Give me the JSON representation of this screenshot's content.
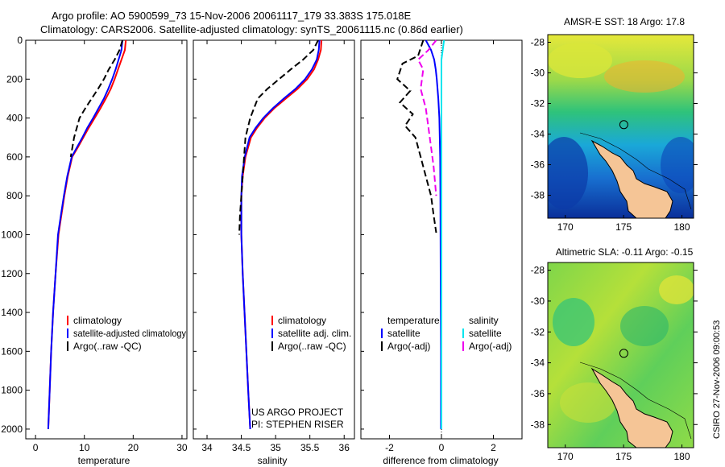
{
  "header": {
    "line1": "Argo profile: AO 5900599_73 15-Nov-2006 20061117_179 33.383S 175.018E",
    "line2": "Climatology: CARS2006. Satellite-adjusted climatology: synTS_20061115.nc (0.86d earlier)"
  },
  "side_note": "CSIRO 27-Nov-2006 09:00:53",
  "project_note": {
    "line1": "US ARGO PROJECT",
    "line2": "PI: STEPHEN RISER"
  },
  "colors": {
    "climatology": "#ff0000",
    "satellite": "#0000ff",
    "argo": "#000000",
    "sat_sal": "#00e5ee",
    "argo_sal": "#ee00ee",
    "land": "#f5c596"
  },
  "chart_data": [
    {
      "id": "temperature",
      "type": "line",
      "xlabel": "temperature",
      "ylabel": "",
      "xlim": [
        -2,
        31
      ],
      "ylim": [
        2050,
        0
      ],
      "xticks": [
        0,
        10,
        20,
        30
      ],
      "yticks": [
        0,
        200,
        400,
        600,
        800,
        1000,
        1200,
        1400,
        1600,
        1800,
        2000
      ],
      "legend": [
        "climatology",
        "satellite-adjusted climatology",
        "Argo(..raw -QC)"
      ],
      "series": [
        {
          "name": "climatology",
          "color": "#ff0000",
          "dash": "",
          "x": [
            18.5,
            18.3,
            17.6,
            16.9,
            16.2,
            15.4,
            14.4,
            13.3,
            12.1,
            10.9,
            9.8,
            8.7,
            7.5,
            6.6,
            5.9,
            5.3,
            4.7,
            4.1,
            3.6,
            3.2,
            2.9,
            2.6
          ],
          "y": [
            0,
            50,
            100,
            150,
            200,
            250,
            300,
            350,
            400,
            450,
            500,
            550,
            600,
            700,
            800,
            900,
            1000,
            1200,
            1400,
            1600,
            1800,
            2000
          ]
        },
        {
          "name": "satellite-adjusted climatology",
          "color": "#0000ff",
          "dash": "",
          "x": [
            17.8,
            17.6,
            17.0,
            16.4,
            15.7,
            14.9,
            14.0,
            12.9,
            11.8,
            10.6,
            9.6,
            8.5,
            7.4,
            6.5,
            5.8,
            5.2,
            4.6,
            4.1,
            3.6,
            3.2,
            2.9,
            2.6
          ],
          "y": [
            0,
            50,
            100,
            150,
            200,
            250,
            300,
            350,
            400,
            450,
            500,
            550,
            600,
            700,
            800,
            900,
            1000,
            1200,
            1400,
            1600,
            1800,
            2000
          ]
        },
        {
          "name": "Argo(..raw -QC)",
          "color": "#000000",
          "dash": "8,4",
          "x": [
            17.8,
            17.2,
            16.2,
            15.0,
            14.0,
            12.8,
            11.5,
            10.2,
            9.0,
            7.9,
            7.2
          ],
          "y": [
            0,
            50,
            100,
            150,
            200,
            250,
            300,
            350,
            400,
            500,
            600
          ]
        }
      ]
    },
    {
      "id": "salinity",
      "type": "line",
      "xlabel": "salinity",
      "ylabel": "",
      "xlim": [
        33.8,
        36.15
      ],
      "ylim": [
        2050,
        0
      ],
      "xticks": [
        34,
        34.5,
        35,
        35.5,
        36
      ],
      "yticks": [],
      "legend": [
        "climatology",
        "satellite adj. clim.",
        "Argo(..raw -QC)"
      ],
      "series": [
        {
          "name": "climatology",
          "color": "#ff0000",
          "dash": "",
          "x": [
            35.67,
            35.66,
            35.62,
            35.56,
            35.46,
            35.32,
            35.15,
            34.98,
            34.84,
            34.73,
            34.64,
            34.56,
            34.52,
            34.5,
            34.5,
            34.52,
            34.56,
            34.6,
            34.63
          ],
          "y": [
            0,
            50,
            100,
            150,
            200,
            250,
            300,
            350,
            400,
            450,
            500,
            600,
            700,
            800,
            1000,
            1200,
            1500,
            1800,
            2000
          ]
        },
        {
          "name": "satellite adj. clim.",
          "color": "#0000ff",
          "dash": "",
          "x": [
            35.64,
            35.63,
            35.6,
            35.53,
            35.43,
            35.29,
            35.12,
            34.96,
            34.82,
            34.71,
            34.62,
            34.55,
            34.51,
            34.5,
            34.5,
            34.52,
            34.56,
            34.6,
            34.63
          ],
          "y": [
            0,
            50,
            100,
            150,
            200,
            250,
            300,
            350,
            400,
            450,
            500,
            600,
            700,
            800,
            1000,
            1200,
            1500,
            1800,
            2000
          ]
        },
        {
          "name": "Argo(..raw -QC)",
          "color": "#000000",
          "dash": "8,4",
          "x": [
            35.62,
            35.55,
            35.4,
            35.22,
            35.05,
            34.88,
            34.74,
            34.63,
            34.56,
            34.52,
            34.48,
            34.47
          ],
          "y": [
            0,
            50,
            100,
            150,
            200,
            250,
            300,
            400,
            500,
            700,
            900,
            1000
          ]
        }
      ]
    },
    {
      "id": "difference",
      "type": "line",
      "xlabel": "difference from climatology",
      "ylabel": "",
      "xlim": [
        -3.1,
        3.1
      ],
      "ylim": [
        2050,
        0
      ],
      "xticks": [
        -2,
        0,
        2
      ],
      "yticks": [],
      "legend_groups": [
        {
          "heading": "temperature",
          "items": [
            "satellite",
            "Argo(-adj)"
          ]
        },
        {
          "heading": "salinity",
          "items": [
            "satellite",
            "Argo(-adj)"
          ]
        }
      ],
      "series": [
        {
          "name": "temperature satellite",
          "color": "#0000ff",
          "dash": "",
          "x": [
            -0.6,
            -0.4,
            -0.28,
            -0.22,
            -0.18,
            -0.12,
            -0.08,
            -0.05,
            -0.04,
            -0.03,
            -0.02,
            -0.02
          ],
          "y": [
            0,
            50,
            100,
            150,
            200,
            300,
            400,
            600,
            800,
            1200,
            1600,
            2000
          ]
        },
        {
          "name": "temperature Argo(-adj)",
          "color": "#000000",
          "dash": "8,4",
          "x": [
            -0.7,
            -0.9,
            -1.5,
            -1.7,
            -1.2,
            -1.6,
            -1.1,
            -1.4,
            -1.0,
            -0.8,
            -0.6,
            -0.4,
            -0.3,
            -0.2
          ],
          "y": [
            0,
            80,
            120,
            200,
            260,
            320,
            380,
            440,
            500,
            600,
            700,
            800,
            900,
            990
          ]
        },
        {
          "name": "salinity satellite",
          "color": "#00e5ee",
          "dash": "",
          "x": [
            0.1,
            0.05,
            0.0,
            0.0,
            0.0,
            0.0,
            0.0,
            0.0,
            0.0
          ],
          "y": [
            0,
            50,
            100,
            200,
            400,
            800,
            1200,
            1600,
            2000
          ]
        },
        {
          "name": "salinity Argo(-adj)",
          "color": "#ee00ee",
          "dash": "8,4",
          "x": [
            -0.2,
            -0.5,
            -0.9,
            -0.7,
            -0.8,
            -0.6,
            -0.5,
            -0.4,
            -0.3,
            -0.2
          ],
          "y": [
            0,
            50,
            100,
            150,
            250,
            350,
            450,
            550,
            650,
            800
          ]
        }
      ]
    },
    {
      "id": "sst_map",
      "type": "heatmap",
      "title": "AMSR-E SST: 18 Argo: 17.8",
      "xlim": [
        168.5,
        181
      ],
      "ylim": [
        -39.5,
        -27.5
      ],
      "xticks": [
        170,
        175,
        180
      ],
      "yticks": [
        -28,
        -30,
        -32,
        -34,
        -36,
        -38
      ],
      "marker": {
        "lon": 175.018,
        "lat": -33.383
      }
    },
    {
      "id": "sla_map",
      "type": "heatmap",
      "title": "Altimetric SLA: -0.11 Argo: -0.15",
      "xlim": [
        168.5,
        181
      ],
      "ylim": [
        -39.5,
        -27.5
      ],
      "xticks": [
        170,
        175,
        180
      ],
      "yticks": [
        -28,
        -30,
        -32,
        -34,
        -36,
        -38
      ],
      "marker": {
        "lon": 175.018,
        "lat": -33.383
      }
    }
  ]
}
